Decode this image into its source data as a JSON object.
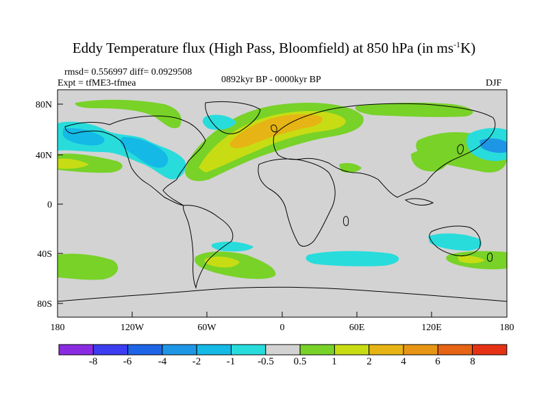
{
  "header": {
    "title_main": "Eddy Temperature flux (High Pass, Bloomfield) at 850 hPa (in ms",
    "title_sup": "-1",
    "title_end": "K)",
    "stats": "rmsd= 0.556997 diff= 0.0929508",
    "experiment": "Expt = tfME3-tfmea",
    "period": "0892kyr BP - 0000kyr BP",
    "season": "DJF"
  },
  "axes": {
    "lat_labels": [
      "80N",
      "40N",
      "0",
      "40S",
      "80S"
    ],
    "lon_labels": [
      "180",
      "120W",
      "60W",
      "0",
      "60E",
      "120E",
      "180"
    ]
  },
  "colorbar": {
    "colors": [
      "#8a2be2",
      "#3c3cf0",
      "#1e64e6",
      "#1e96e6",
      "#14b9e6",
      "#28dcdc",
      "#d3d3d3",
      "#78d228",
      "#c8dc14",
      "#e6b414",
      "#e69614",
      "#e66414",
      "#e63214"
    ],
    "labels": [
      "-8",
      "-6",
      "-4",
      "-2",
      "-1",
      "-0.5",
      "0.5",
      "1",
      "2",
      "4",
      "6",
      "8"
    ]
  },
  "colors": {
    "ocean": "#d3d3d3",
    "coast": "#000000"
  }
}
